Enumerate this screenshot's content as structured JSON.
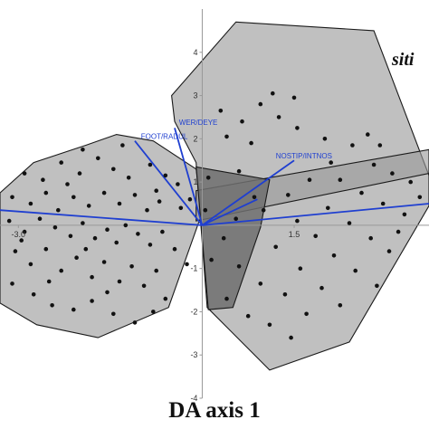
{
  "chart_data": {
    "type": "scatter",
    "title": "",
    "xlabel": "DA axis 1",
    "ylabel": "",
    "xlim": [
      -3.3,
      3.7
    ],
    "ylim": [
      -4.0,
      5.0
    ],
    "x_ticks": [
      {
        "value": -3.0,
        "label": "-3.0"
      },
      {
        "value": 1.5,
        "label": "1.5"
      }
    ],
    "y_ticks": [
      {
        "value": 4,
        "label": "4"
      },
      {
        "value": 3,
        "label": "3"
      },
      {
        "value": 2,
        "label": "2"
      },
      {
        "value": 1,
        "label": "1"
      },
      {
        "value": -1,
        "label": "-1"
      },
      {
        "value": -2,
        "label": "-2"
      },
      {
        "value": -3,
        "label": "-3"
      },
      {
        "value": -4,
        "label": "-4"
      }
    ],
    "group_label": "siti",
    "colors": {
      "hull_fill": "#9a9a9a",
      "hull_stroke": "#1a1a1a",
      "overlap_fill": "#6e6e6e",
      "vector": "#1f3fd0",
      "point": "#111111",
      "axis": "#999999"
    },
    "hulls": [
      {
        "points": [
          [
            -3.3,
            0.75
          ],
          [
            -2.75,
            1.45
          ],
          [
            -1.9,
            1.85
          ],
          [
            -1.4,
            2.1
          ],
          [
            -0.8,
            1.95
          ],
          [
            -0.1,
            1.3
          ],
          [
            0.0,
            0.3
          ],
          [
            -0.55,
            -1.9
          ],
          [
            -1.7,
            -2.6
          ],
          [
            -2.7,
            -2.3
          ],
          [
            -3.3,
            -1.8
          ]
        ]
      },
      {
        "points": [
          [
            -0.5,
            3.0
          ],
          [
            0.55,
            4.7
          ],
          [
            2.8,
            4.5
          ],
          [
            3.7,
            1.15
          ],
          [
            3.7,
            0.45
          ],
          [
            2.4,
            -2.7
          ],
          [
            1.1,
            -3.35
          ],
          [
            0.08,
            -1.9
          ],
          [
            -0.1,
            1.45
          ],
          [
            -0.45,
            2.4
          ]
        ]
      },
      {
        "points": [
          [
            -0.1,
            0.8
          ],
          [
            3.7,
            1.75
          ],
          [
            3.7,
            1.2
          ],
          [
            -0.1,
            0.1
          ]
        ]
      },
      {
        "points": [
          [
            -0.1,
            1.35
          ],
          [
            1.1,
            1.05
          ],
          [
            0.95,
            -0.05
          ],
          [
            0.5,
            -1.9
          ],
          [
            0.1,
            -1.95
          ]
        ]
      }
    ],
    "vectors": [
      {
        "label": "WER/DEYE",
        "tip": [
          -0.45,
          2.25
        ],
        "label_pos": [
          -0.38,
          2.32
        ]
      },
      {
        "label": "FOOT/RADUL",
        "tip": [
          -1.1,
          1.95
        ],
        "label_pos": [
          -1.0,
          2.0
        ]
      },
      {
        "label": "NOSTIP/INTNOS",
        "tip": [
          1.5,
          1.5
        ],
        "label_pos": [
          1.2,
          1.55
        ]
      },
      {
        "label": "",
        "tip": [
          -3.3,
          0.35
        ],
        "label_pos": null
      },
      {
        "label": "",
        "tip": [
          3.7,
          0.5
        ],
        "label_pos": null
      },
      {
        "label": "",
        "tip": [
          0.9,
          0.6
        ],
        "label_pos": null
      }
    ],
    "points": [
      [
        -2.9,
        1.2
      ],
      [
        -2.6,
        1.05
      ],
      [
        -2.3,
        1.45
      ],
      [
        -2.0,
        1.2
      ],
      [
        -1.7,
        1.55
      ],
      [
        -1.45,
        1.3
      ],
      [
        -1.2,
        1.1
      ],
      [
        -0.85,
        1.4
      ],
      [
        -0.6,
        1.15
      ],
      [
        -0.4,
        0.95
      ],
      [
        -3.1,
        0.65
      ],
      [
        -2.8,
        0.5
      ],
      [
        -2.55,
        0.75
      ],
      [
        -2.35,
        0.35
      ],
      [
        -2.1,
        0.65
      ],
      [
        -1.85,
        0.45
      ],
      [
        -1.6,
        0.75
      ],
      [
        -1.35,
        0.5
      ],
      [
        -1.1,
        0.7
      ],
      [
        -0.9,
        0.35
      ],
      [
        -0.7,
        0.55
      ],
      [
        -0.35,
        0.4
      ],
      [
        -3.15,
        0.1
      ],
      [
        -2.9,
        -0.15
      ],
      [
        -2.65,
        0.15
      ],
      [
        -2.4,
        -0.05
      ],
      [
        -2.15,
        -0.25
      ],
      [
        -1.95,
        0.05
      ],
      [
        -1.75,
        -0.3
      ],
      [
        -1.55,
        -0.1
      ],
      [
        -1.4,
        -0.4
      ],
      [
        -1.25,
        0.0
      ],
      [
        -1.05,
        -0.2
      ],
      [
        -0.85,
        -0.45
      ],
      [
        -0.65,
        -0.15
      ],
      [
        -0.45,
        -0.55
      ],
      [
        -3.05,
        -0.6
      ],
      [
        -2.8,
        -0.9
      ],
      [
        -2.55,
        -0.55
      ],
      [
        -2.3,
        -1.05
      ],
      [
        -2.05,
        -0.75
      ],
      [
        -1.8,
        -1.2
      ],
      [
        -1.6,
        -0.85
      ],
      [
        -1.35,
        -1.3
      ],
      [
        -1.15,
        -0.95
      ],
      [
        -0.95,
        -1.4
      ],
      [
        -0.75,
        -1.05
      ],
      [
        -0.6,
        -1.7
      ],
      [
        -3.1,
        -1.35
      ],
      [
        -2.75,
        -1.6
      ],
      [
        -2.45,
        -1.85
      ],
      [
        -2.1,
        -1.95
      ],
      [
        -1.8,
        -1.75
      ],
      [
        -1.45,
        -2.05
      ],
      [
        -1.1,
        -2.25
      ],
      [
        -0.8,
        -2.0
      ],
      [
        -2.2,
        0.95
      ],
      [
        -1.95,
        1.75
      ],
      [
        -1.3,
        1.85
      ],
      [
        -0.75,
        0.8
      ],
      [
        -0.2,
        0.6
      ],
      [
        -0.25,
        -0.9
      ],
      [
        -2.5,
        -1.3
      ],
      [
        -1.55,
        -1.55
      ],
      [
        -2.95,
        -0.35
      ],
      [
        -1.9,
        -0.55
      ],
      [
        0.3,
        2.65
      ],
      [
        0.65,
        2.4
      ],
      [
        0.95,
        2.8
      ],
      [
        1.25,
        2.5
      ],
      [
        1.5,
        2.95
      ],
      [
        0.4,
        2.05
      ],
      [
        0.8,
        1.9
      ],
      [
        1.55,
        2.25
      ],
      [
        2.0,
        2.0
      ],
      [
        1.15,
        3.05
      ],
      [
        2.45,
        1.85
      ],
      [
        2.8,
        1.4
      ],
      [
        3.1,
        1.2
      ],
      [
        3.4,
        1.0
      ],
      [
        2.25,
        1.05
      ],
      [
        2.6,
        0.75
      ],
      [
        2.95,
        0.5
      ],
      [
        3.3,
        0.25
      ],
      [
        3.55,
        0.65
      ],
      [
        2.05,
        0.4
      ],
      [
        2.4,
        0.05
      ],
      [
        2.75,
        -0.3
      ],
      [
        3.05,
        -0.6
      ],
      [
        1.85,
        -0.25
      ],
      [
        2.15,
        -0.7
      ],
      [
        2.5,
        -1.05
      ],
      [
        2.85,
        -1.4
      ],
      [
        1.6,
        -1.0
      ],
      [
        1.95,
        -1.45
      ],
      [
        2.25,
        -1.85
      ],
      [
        1.35,
        -1.6
      ],
      [
        1.7,
        -2.05
      ],
      [
        1.1,
        -2.3
      ],
      [
        1.45,
        -2.6
      ],
      [
        0.75,
        -2.1
      ],
      [
        0.4,
        -1.7
      ],
      [
        0.95,
        -1.35
      ],
      [
        0.6,
        -0.95
      ],
      [
        1.2,
        -0.5
      ],
      [
        0.35,
        -0.3
      ],
      [
        0.05,
        0.35
      ],
      [
        0.15,
        -0.8
      ],
      [
        0.55,
        0.15
      ],
      [
        1.0,
        0.35
      ],
      [
        1.4,
        0.7
      ],
      [
        1.75,
        1.05
      ],
      [
        2.1,
        1.45
      ],
      [
        0.85,
        0.65
      ],
      [
        1.55,
        0.1
      ],
      [
        3.2,
        -0.15
      ],
      [
        2.7,
        2.1
      ],
      [
        0.1,
        1.1
      ],
      [
        0.6,
        1.25
      ],
      [
        2.9,
        1.85
      ]
    ]
  }
}
